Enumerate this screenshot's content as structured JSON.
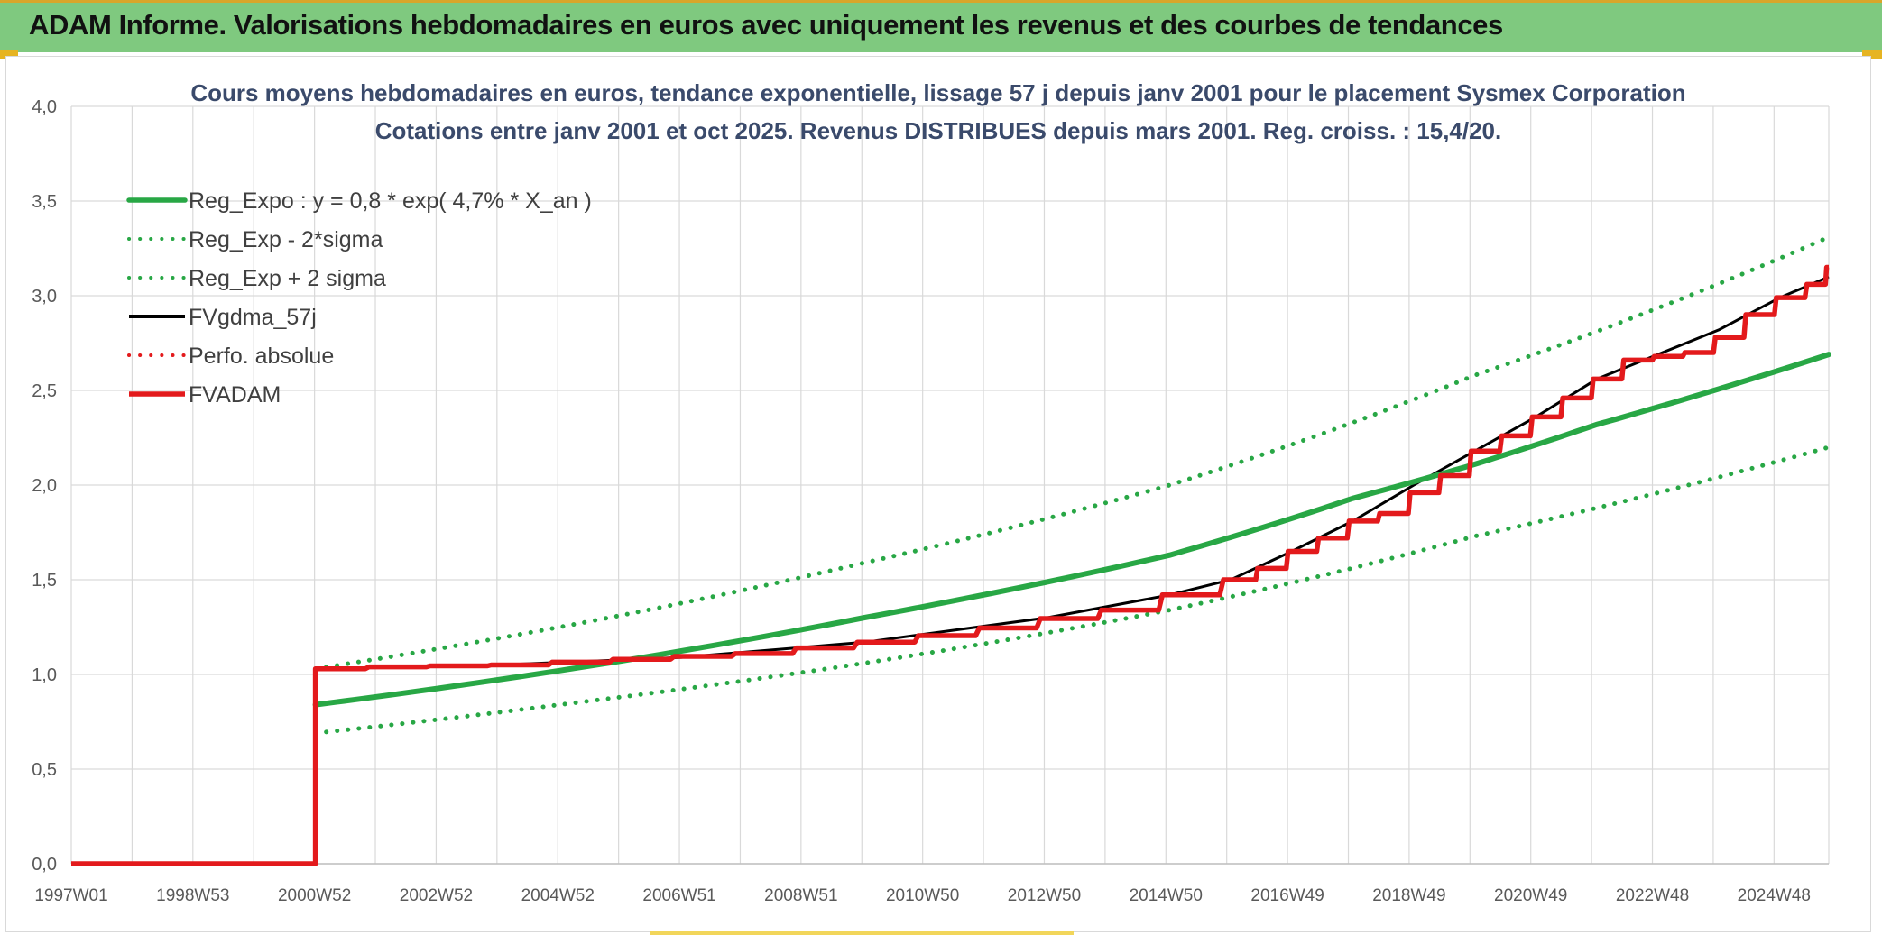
{
  "header": {
    "title": "ADAM Informe. Valorisations hebdomadaires en euros avec uniquement les revenus et des courbes de tendances"
  },
  "chart_data": {
    "type": "line",
    "title": "Cours moyens hebdomadaires en euros, tendance exponentielle, lissage 57 j depuis janv 2001 pour le placement Sysmex Corporation",
    "subtitle": "Cotations entre janv 2001 et oct 2025. Revenus DISTRIBUES depuis mars 2001. Reg. croiss. : 15,4/20.",
    "xlabel": "",
    "ylabel": "",
    "x_tick_labels": [
      "1997W01",
      "1998W53",
      "2000W52",
      "2002W52",
      "2004W52",
      "2006W51",
      "2008W51",
      "2010W50",
      "2012W50",
      "2014W50",
      "2016W49",
      "2018W49",
      "2020W49",
      "2022W48",
      "2024W48"
    ],
    "x_range_years": [
      1997.0,
      2025.8
    ],
    "ylim": [
      0,
      4
    ],
    "y_tick_labels": [
      "0,0",
      "0,5",
      "1,0",
      "1,5",
      "2,0",
      "2,5",
      "3,0",
      "3,5",
      "4,0"
    ],
    "grid": true,
    "legend_position": "top-left",
    "series": [
      {
        "name": "Reg_Expo : y = 0,8 * exp( 4,7% *  X_an )",
        "color": "#28a745",
        "style": "solid",
        "points": [
          [
            2001.0,
            0.84
          ],
          [
            2005.0,
            1.02
          ],
          [
            2010.0,
            1.3
          ],
          [
            2015.0,
            1.63
          ],
          [
            2018.0,
            1.93
          ],
          [
            2020.0,
            2.11
          ],
          [
            2022.0,
            2.32
          ],
          [
            2025.8,
            2.69
          ]
        ]
      },
      {
        "name": "Reg_Exp - 2*sigma",
        "color": "#28a745",
        "style": "dotted",
        "points": [
          [
            2001.0,
            0.69
          ],
          [
            2005.0,
            0.84
          ],
          [
            2010.0,
            1.06
          ],
          [
            2015.0,
            1.34
          ],
          [
            2020.0,
            1.73
          ],
          [
            2025.8,
            2.2
          ]
        ]
      },
      {
        "name": "Reg_Exp + 2 sigma",
        "color": "#28a745",
        "style": "dotted",
        "points": [
          [
            2001.0,
            1.03
          ],
          [
            2005.0,
            1.25
          ],
          [
            2010.0,
            1.59
          ],
          [
            2015.0,
            2.0
          ],
          [
            2020.0,
            2.58
          ],
          [
            2025.8,
            3.31
          ]
        ]
      },
      {
        "name": "FVgdma_57j",
        "color": "#000000",
        "style": "solid",
        "points": [
          [
            2001.0,
            1.03
          ],
          [
            2004.0,
            1.05
          ],
          [
            2007.0,
            1.09
          ],
          [
            2010.0,
            1.17
          ],
          [
            2013.0,
            1.3
          ],
          [
            2015.0,
            1.42
          ],
          [
            2016.0,
            1.5
          ],
          [
            2017.0,
            1.65
          ],
          [
            2018.0,
            1.81
          ],
          [
            2019.0,
            2.0
          ],
          [
            2020.0,
            2.18
          ],
          [
            2021.0,
            2.36
          ],
          [
            2022.0,
            2.56
          ],
          [
            2023.0,
            2.69
          ],
          [
            2024.0,
            2.82
          ],
          [
            2025.0,
            2.99
          ],
          [
            2025.8,
            3.1
          ]
        ]
      },
      {
        "name": "Perfo. absolue",
        "color": "#e31a1c",
        "style": "dotted",
        "points": []
      },
      {
        "name": "FVADAM",
        "color": "#e31a1c",
        "style": "solid-thick",
        "points": [
          [
            1997.0,
            0.0
          ],
          [
            2001.0,
            0.0
          ],
          [
            2001.0,
            1.03
          ],
          [
            2002.0,
            1.04
          ],
          [
            2003.0,
            1.045
          ],
          [
            2004.0,
            1.05
          ],
          [
            2005.0,
            1.065
          ],
          [
            2006.0,
            1.08
          ],
          [
            2007.0,
            1.095
          ],
          [
            2008.0,
            1.11
          ],
          [
            2009.0,
            1.14
          ],
          [
            2010.0,
            1.17
          ],
          [
            2011.0,
            1.205
          ],
          [
            2012.0,
            1.245
          ],
          [
            2013.0,
            1.295
          ],
          [
            2014.0,
            1.34
          ],
          [
            2015.0,
            1.42
          ],
          [
            2016.0,
            1.5
          ],
          [
            2016.5,
            1.56
          ],
          [
            2017.0,
            1.65
          ],
          [
            2017.5,
            1.72
          ],
          [
            2018.0,
            1.81
          ],
          [
            2018.5,
            1.85
          ],
          [
            2019.0,
            1.96
          ],
          [
            2019.5,
            2.05
          ],
          [
            2020.0,
            2.18
          ],
          [
            2020.5,
            2.26
          ],
          [
            2021.0,
            2.36
          ],
          [
            2021.5,
            2.46
          ],
          [
            2022.0,
            2.56
          ],
          [
            2022.5,
            2.66
          ],
          [
            2023.0,
            2.68
          ],
          [
            2023.5,
            2.7
          ],
          [
            2024.0,
            2.78
          ],
          [
            2024.5,
            2.9
          ],
          [
            2025.0,
            2.99
          ],
          [
            2025.5,
            3.06
          ],
          [
            2025.8,
            3.15
          ]
        ]
      }
    ]
  }
}
